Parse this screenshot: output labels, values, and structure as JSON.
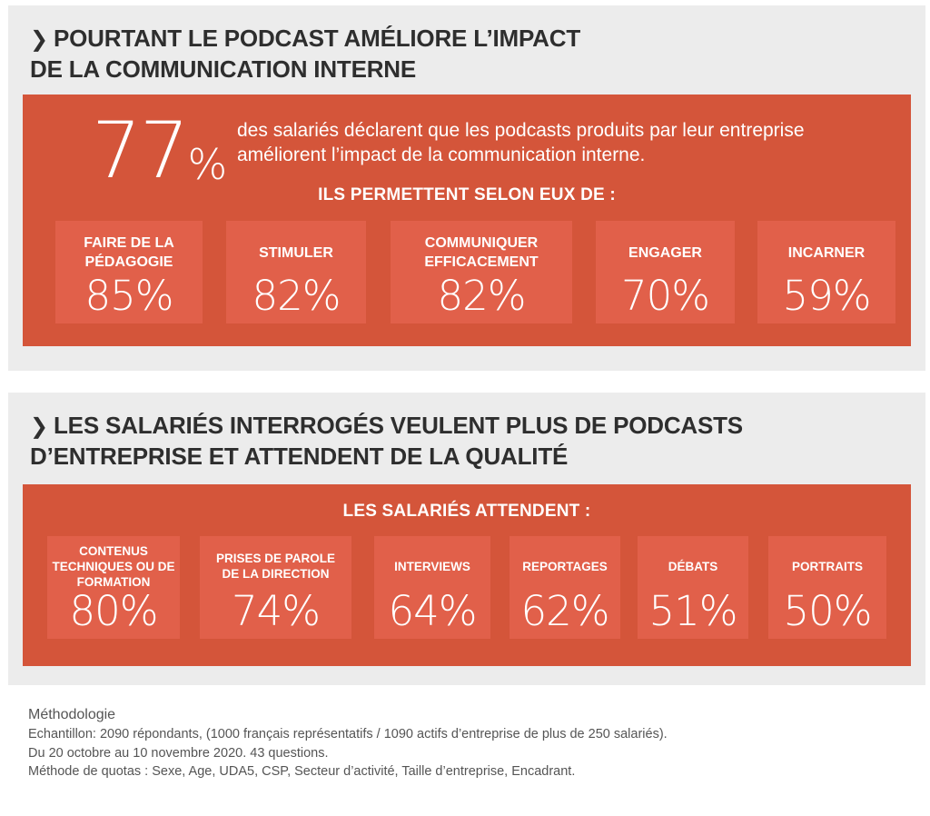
{
  "section1": {
    "title_line1": "POURTANT LE PODCAST AMÉLIORE L’IMPACT",
    "title_line2": "DE LA COMMUNICATION INTERNE",
    "big_value": "77",
    "big_sign": "%",
    "description": "des salariés déclarent que les podcasts produits par leur entreprise améliorent l’impact de la communication interne.",
    "subheading": "ILS PERMETTENT SELON EUX DE :",
    "boxes": [
      {
        "label": "FAIRE DE LA PÉDAGOGIE",
        "value": "85%"
      },
      {
        "label": "STIMULER",
        "value": "82%"
      },
      {
        "label": "COMMUNIQUER EFFICACEMENT",
        "value": "82%"
      },
      {
        "label": "ENGAGER",
        "value": "70%"
      },
      {
        "label": "INCARNER",
        "value": "59%"
      }
    ]
  },
  "section2": {
    "title_line1": "LES SALARIÉS INTERROGÉS VEULENT PLUS DE PODCASTS",
    "title_line2": "D’ENTREPRISE ET ATTENDENT DE LA QUALITÉ",
    "subheading": "LES SALARIÉS ATTENDENT :",
    "boxes": [
      {
        "label": "CONTENUS TECHNIQUES OU DE FORMATION",
        "value": "80%"
      },
      {
        "label": "PRISES DE PAROLE DE LA DIRECTION",
        "value": "74%"
      },
      {
        "label": "INTERVIEWS",
        "value": "64%"
      },
      {
        "label": "REPORTAGES",
        "value": "62%"
      },
      {
        "label": "DÉBATS",
        "value": "51%"
      },
      {
        "label": "PORTRAITS",
        "value": "50%"
      }
    ]
  },
  "methodology": {
    "title": "Méthodologie",
    "line1": "Echantillon: 2090 répondants, (1000 français représentatifs / 1090 actifs d’entreprise de plus de 250 salariés).",
    "line2": "Du 20 octobre au 10 novembre 2020. 43 questions.",
    "line3": "Méthode de quotas : Sexe, Age, UDA5, CSP, Secteur d’activité, Taille d’entreprise, Encadrant."
  },
  "colors": {
    "panel": "#d4553a",
    "box": "#e1604a",
    "section_bg": "#ececec",
    "heading": "#2e2e2e"
  },
  "icons": {
    "heading_bullet": "chevron-right-icon"
  }
}
